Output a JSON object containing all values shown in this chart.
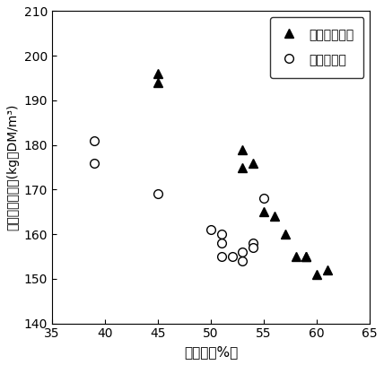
{
  "title": "",
  "xlabel": "含水率（%）",
  "ylabel": "乾物見掛け密度(kg・DM/m³)",
  "xlim": [
    35,
    65
  ],
  "ylim": [
    140,
    210
  ],
  "xticks": [
    35,
    40,
    45,
    50,
    55,
    60,
    65
  ],
  "yticks": [
    140,
    150,
    160,
    170,
    180,
    190,
    200,
    210
  ],
  "akita_x": [
    45,
    45,
    53,
    53,
    54,
    55,
    56,
    57,
    58,
    59,
    59,
    60,
    61
  ],
  "akita_y": [
    196,
    194,
    179,
    175,
    176,
    165,
    164,
    160,
    155,
    155,
    155,
    151,
    152
  ],
  "beko_x": [
    39,
    39,
    45,
    50,
    51,
    51,
    51,
    52,
    53,
    53,
    54,
    54,
    55
  ],
  "beko_y": [
    181,
    176,
    169,
    161,
    160,
    158,
    155,
    155,
    156,
    154,
    158,
    157,
    168
  ],
  "legend_akita": "あきたこまち",
  "legend_beko": "べこあおば",
  "marker_akita": "^",
  "marker_beko": "o",
  "color_akita": "#000000",
  "color_beko": "#000000",
  "facecolor_akita": "#000000",
  "facecolor_beko": "white",
  "markersize": 7,
  "bg_color": "#ffffff"
}
